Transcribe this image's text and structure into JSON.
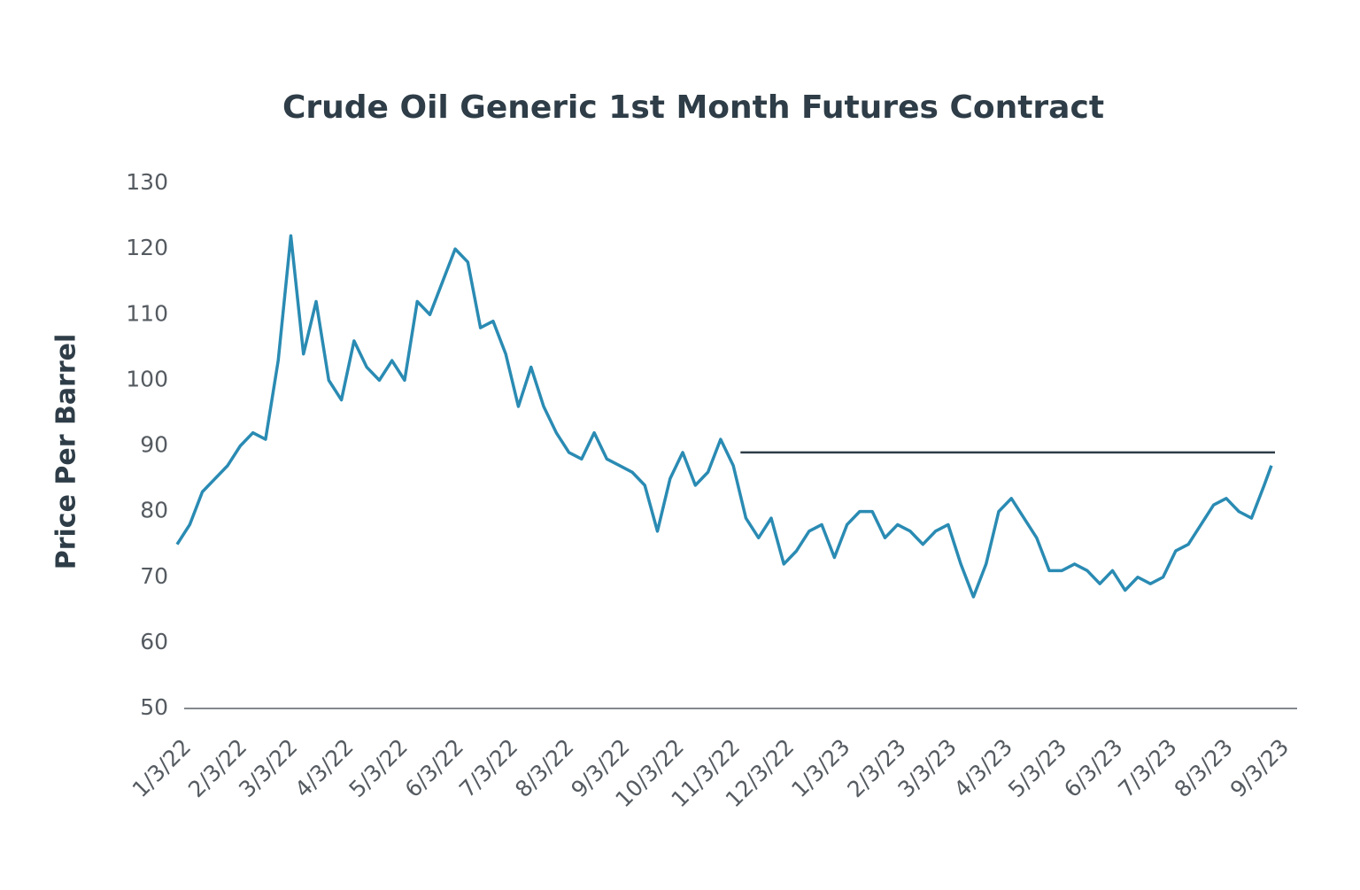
{
  "chart_data": {
    "type": "line",
    "title": "Crude Oil Generic 1st Month Futures Contract",
    "y_label": "Price Per Barrel",
    "x": [
      "1/3/22",
      "1/10/22",
      "1/17/22",
      "1/24/22",
      "1/31/22",
      "2/7/22",
      "2/14/22",
      "2/21/22",
      "2/28/22",
      "3/7/22",
      "3/14/22",
      "3/21/22",
      "3/28/22",
      "4/4/22",
      "4/11/22",
      "4/18/22",
      "4/25/22",
      "5/2/22",
      "5/9/22",
      "5/16/22",
      "5/23/22",
      "5/30/22",
      "6/6/22",
      "6/13/22",
      "6/20/22",
      "6/27/22",
      "7/4/22",
      "7/11/22",
      "7/18/22",
      "7/25/22",
      "8/1/22",
      "8/8/22",
      "8/15/22",
      "8/22/22",
      "8/29/22",
      "9/5/22",
      "9/12/22",
      "9/19/22",
      "9/26/22",
      "10/3/22",
      "10/10/22",
      "10/17/22",
      "10/24/22",
      "10/31/22",
      "11/7/22",
      "11/14/22",
      "11/21/22",
      "11/28/22",
      "12/5/22",
      "12/12/22",
      "12/19/22",
      "12/26/22",
      "1/2/23",
      "1/9/23",
      "1/16/23",
      "1/23/23",
      "1/30/23",
      "2/6/23",
      "2/13/23",
      "2/20/23",
      "2/27/23",
      "3/6/23",
      "3/13/23",
      "3/20/23",
      "3/27/23",
      "4/3/23",
      "4/10/23",
      "4/17/23",
      "4/24/23",
      "5/1/23",
      "5/8/23",
      "5/15/23",
      "5/22/23",
      "5/29/23",
      "6/5/23",
      "6/12/23",
      "6/19/23",
      "6/26/23",
      "7/3/23",
      "7/10/23",
      "7/17/23",
      "7/24/23",
      "7/31/23",
      "8/7/23",
      "8/14/23",
      "8/21/23",
      "8/28/23",
      "9/1/23"
    ],
    "series": [
      {
        "name": "Crude Oil",
        "color": "#2a8bb3",
        "values": [
          75,
          78,
          83,
          85,
          87,
          90,
          92,
          91,
          103,
          122,
          104,
          112,
          100,
          97,
          106,
          102,
          100,
          103,
          100,
          112,
          110,
          115,
          120,
          118,
          108,
          109,
          104,
          96,
          102,
          96,
          92,
          89,
          88,
          92,
          88,
          87,
          86,
          84,
          77,
          85,
          89,
          84,
          86,
          91,
          87,
          79,
          76,
          79,
          72,
          74,
          77,
          78,
          73,
          78,
          80,
          80,
          76,
          78,
          77,
          75,
          77,
          78,
          72,
          67,
          72,
          80,
          82,
          79,
          76,
          71,
          71,
          72,
          71,
          69,
          71,
          68,
          70,
          69,
          70,
          74,
          75,
          78,
          81,
          82,
          80,
          79,
          84,
          87
        ]
      }
    ],
    "reference_line": {
      "value": 89,
      "x": [
        "11/11/22",
        "9/3/23"
      ],
      "color": "#2e3d47"
    },
    "xlim": [
      "1/3/22",
      "9/3/23"
    ],
    "xticks": [
      "1/3/22",
      "2/3/22",
      "3/3/22",
      "4/3/22",
      "5/3/22",
      "6/3/22",
      "7/3/22",
      "8/3/22",
      "9/3/22",
      "10/3/22",
      "11/3/22",
      "12/3/22",
      "1/3/23",
      "2/3/23",
      "3/3/23",
      "4/3/23",
      "5/3/23",
      "6/3/23",
      "7/3/23",
      "8/3/23",
      "9/3/23"
    ],
    "ylim": [
      50,
      130
    ],
    "yticks": [
      50,
      60,
      70,
      80,
      90,
      100,
      110,
      120,
      130
    ],
    "grid": false
  }
}
